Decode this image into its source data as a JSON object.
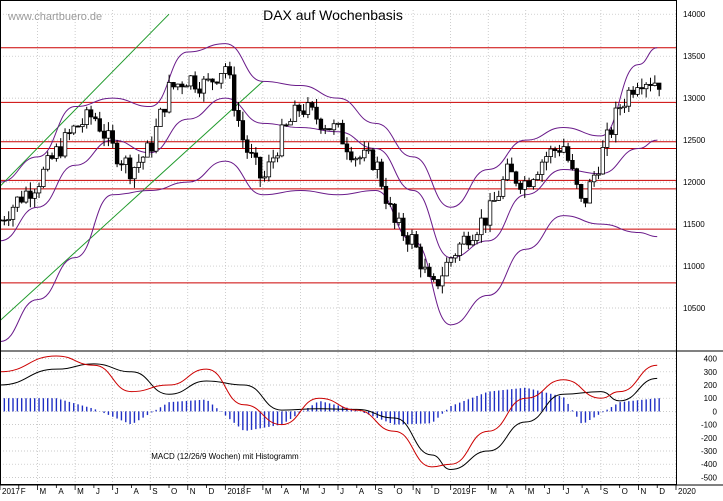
{
  "watermark": "www.chartbuero.de",
  "chart_data": [
    {
      "type": "candlestick",
      "title": "DAX auf Wochenbasis",
      "x_range": [
        "2017-01",
        "2020-01"
      ],
      "ylim": [
        10000,
        14050
      ],
      "y_ticks": [
        10500,
        11000,
        11500,
        12000,
        12500,
        13000,
        13500,
        14000
      ],
      "x_tick_labels": [
        "2017",
        "M",
        "M",
        "J",
        "S",
        "N",
        "2018",
        "M",
        "M",
        "J",
        "S",
        "N",
        "2019",
        "M",
        "M",
        "J",
        "S",
        "N",
        "2020"
      ],
      "x_tick_labels_minor": [
        "F",
        "A",
        "J",
        "A",
        "O",
        "D",
        "F",
        "A",
        "J",
        "A",
        "O",
        "D",
        "F",
        "A",
        "J",
        "A",
        "O",
        "D"
      ],
      "horizontal_levels": [
        13600,
        12950,
        12480,
        12400,
        12020,
        11920,
        11440,
        10800
      ],
      "trend_channel_lines": [
        {
          "from": [
            "2017-01",
            11950
          ],
          "to": [
            "2017-10",
            14000
          ]
        },
        {
          "from": [
            "2017-01",
            10350
          ],
          "to": [
            "2018-03",
            13200
          ]
        }
      ],
      "weekly_close_path": [
        [
          "2017-01",
          11550
        ],
        [
          "2017-02",
          11800
        ],
        [
          "2017-03",
          12000
        ],
        [
          "2017-04",
          12350
        ],
        [
          "2017-05",
          12650
        ],
        [
          "2017-06",
          12800
        ],
        [
          "2017-07",
          12400
        ],
        [
          "2017-08",
          12150
        ],
        [
          "2017-09",
          12400
        ],
        [
          "2017-10",
          13100
        ],
        [
          "2017-11",
          13250
        ],
        [
          "2017-12",
          13150
        ],
        [
          "2018-01",
          13400
        ],
        [
          "2018-02",
          12450
        ],
        [
          "2018-03",
          12000
        ],
        [
          "2018-04",
          12550
        ],
        [
          "2018-05",
          12900
        ],
        [
          "2018-06",
          12750
        ],
        [
          "2018-07",
          12600
        ],
        [
          "2018-08",
          12300
        ],
        [
          "2018-09",
          12250
        ],
        [
          "2018-10",
          11500
        ],
        [
          "2018-11",
          11300
        ],
        [
          "2018-12",
          10700
        ],
        [
          "2019-01",
          11100
        ],
        [
          "2019-02",
          11400
        ],
        [
          "2019-03",
          11600
        ],
        [
          "2019-04",
          12100
        ],
        [
          "2019-05",
          12000
        ],
        [
          "2019-06",
          12300
        ],
        [
          "2019-07",
          12450
        ],
        [
          "2019-08",
          11700
        ],
        [
          "2019-09",
          12300
        ],
        [
          "2019-10",
          12900
        ],
        [
          "2019-11",
          13250
        ],
        [
          "2019-12",
          13200
        ]
      ],
      "bollinger_upper": [
        [
          "2017-01",
          12000
        ],
        [
          "2017-03",
          12300
        ],
        [
          "2017-05",
          12900
        ],
        [
          "2017-07",
          13000
        ],
        [
          "2017-09",
          12900
        ],
        [
          "2017-11",
          13550
        ],
        [
          "2018-01",
          13650
        ],
        [
          "2018-03",
          13200
        ],
        [
          "2018-05",
          13150
        ],
        [
          "2018-07",
          13000
        ],
        [
          "2018-09",
          12700
        ],
        [
          "2018-11",
          12300
        ],
        [
          "2019-01",
          11700
        ],
        [
          "2019-03",
          12150
        ],
        [
          "2019-05",
          12500
        ],
        [
          "2019-07",
          12650
        ],
        [
          "2019-09",
          12550
        ],
        [
          "2019-11",
          13400
        ],
        [
          "2019-12",
          13600
        ]
      ],
      "moving_average": [
        [
          "2017-01",
          11300
        ],
        [
          "2017-03",
          11700
        ],
        [
          "2017-05",
          12200
        ],
        [
          "2017-07",
          12500
        ],
        [
          "2017-09",
          12350
        ],
        [
          "2017-11",
          12750
        ],
        [
          "2018-01",
          13000
        ],
        [
          "2018-03",
          12700
        ],
        [
          "2018-05",
          12650
        ],
        [
          "2018-07",
          12600
        ],
        [
          "2018-09",
          12400
        ],
        [
          "2018-11",
          11900
        ],
        [
          "2019-01",
          11100
        ],
        [
          "2019-03",
          11300
        ],
        [
          "2019-05",
          11850
        ],
        [
          "2019-07",
          12150
        ],
        [
          "2019-09",
          12100
        ],
        [
          "2019-11",
          12400
        ],
        [
          "2019-12",
          12500
        ]
      ],
      "bollinger_lower": [
        [
          "2017-01",
          10100
        ],
        [
          "2017-03",
          10600
        ],
        [
          "2017-05",
          11100
        ],
        [
          "2017-07",
          11850
        ],
        [
          "2017-09",
          11900
        ],
        [
          "2017-11",
          12000
        ],
        [
          "2018-01",
          12250
        ],
        [
          "2018-03",
          11850
        ],
        [
          "2018-05",
          11900
        ],
        [
          "2018-07",
          11850
        ],
        [
          "2018-09",
          11900
        ],
        [
          "2018-11",
          11300
        ],
        [
          "2019-01",
          10300
        ],
        [
          "2019-03",
          10650
        ],
        [
          "2019-05",
          11200
        ],
        [
          "2019-07",
          11600
        ],
        [
          "2019-09",
          11500
        ],
        [
          "2019-11",
          11400
        ],
        [
          "2019-12",
          11350
        ]
      ]
    },
    {
      "type": "line",
      "annotation": "MACD (12/26/9 Wochen) mit Histogramm",
      "ylim": [
        -550,
        450
      ],
      "y_ticks": [
        400,
        300,
        200,
        100,
        0,
        -100,
        -200,
        -300,
        -400,
        -500
      ],
      "series": [
        {
          "color": "#000000",
          "values": [
            [
              "2017-01",
              200
            ],
            [
              "2017-04",
              320
            ],
            [
              "2017-06",
              360
            ],
            [
              "2017-08",
              300
            ],
            [
              "2017-10",
              130
            ],
            [
              "2017-12",
              230
            ],
            [
              "2018-02",
              200
            ],
            [
              "2018-04",
              10
            ],
            [
              "2018-06",
              20
            ],
            [
              "2018-08",
              15
            ],
            [
              "2018-10",
              -50
            ],
            [
              "2018-12",
              -330
            ],
            [
              "2019-01",
              -440
            ],
            [
              "2019-03",
              -300
            ],
            [
              "2019-05",
              -80
            ],
            [
              "2019-07",
              130
            ],
            [
              "2019-09",
              150
            ],
            [
              "2019-10",
              80
            ],
            [
              "2019-12",
              250
            ]
          ]
        },
        {
          "color": "#cc0000",
          "values": [
            [
              "2017-01",
              300
            ],
            [
              "2017-04",
              420
            ],
            [
              "2017-06",
              350
            ],
            [
              "2017-08",
              150
            ],
            [
              "2017-10",
              200
            ],
            [
              "2017-12",
              320
            ],
            [
              "2018-02",
              50
            ],
            [
              "2018-04",
              -100
            ],
            [
              "2018-06",
              100
            ],
            [
              "2018-08",
              10
            ],
            [
              "2018-10",
              -150
            ],
            [
              "2018-12",
              -420
            ],
            [
              "2019-01",
              -400
            ],
            [
              "2019-03",
              -150
            ],
            [
              "2019-05",
              100
            ],
            [
              "2019-07",
              240
            ],
            [
              "2019-09",
              100
            ],
            [
              "2019-10",
              150
            ],
            [
              "2019-12",
              350
            ]
          ]
        }
      ],
      "histogram": [
        [
          "2017-01",
          100
        ],
        [
          "2017-04",
          100
        ],
        [
          "2017-06",
          20
        ],
        [
          "2017-08",
          -100
        ],
        [
          "2017-10",
          70
        ],
        [
          "2017-12",
          90
        ],
        [
          "2018-02",
          -150
        ],
        [
          "2018-04",
          -100
        ],
        [
          "2018-06",
          80
        ],
        [
          "2018-08",
          10
        ],
        [
          "2018-10",
          -100
        ],
        [
          "2018-12",
          -90
        ],
        [
          "2019-01",
          40
        ],
        [
          "2019-03",
          150
        ],
        [
          "2019-05",
          180
        ],
        [
          "2019-07",
          110
        ],
        [
          "2019-08",
          -100
        ],
        [
          "2019-10",
          70
        ],
        [
          "2019-12",
          100
        ]
      ]
    }
  ],
  "colors": {
    "frame": "#000000",
    "grid": "#b8b8b8",
    "level": "#cc0000",
    "band": "#6a1b8a",
    "trend": "#1f9a2b",
    "candle_fill": "#000000",
    "candle_hollow": "#ffffff",
    "histogram": "#1f2fc4"
  }
}
